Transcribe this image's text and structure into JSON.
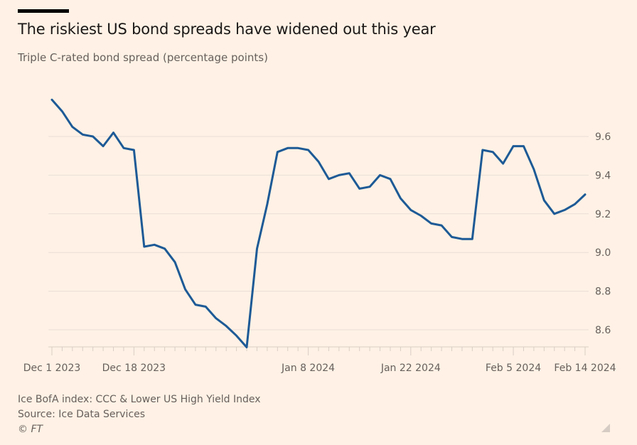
{
  "header": {
    "title": "The riskiest US bond spreads have widened out this year",
    "subtitle": "Triple C-rated bond spread (percentage points)"
  },
  "footer": {
    "note": "Ice BofA index: CCC & Lower US High Yield Index",
    "source": "Source: Ice Data Services",
    "copyright": "© FT"
  },
  "colors": {
    "background": "#fff1e5",
    "line": "#1d5a96",
    "grid": "#e9dfd6",
    "axis_text": "#66605c"
  },
  "chart_data": {
    "type": "line",
    "title": "The riskiest US bond spreads have widened out this year",
    "subtitle": "Triple C-rated bond spread (percentage points)",
    "xlabel": "",
    "ylabel": "Triple C-rated bond spread (percentage points)",
    "ylim": [
      8.5,
      9.75
    ],
    "yticks": [
      8.6,
      8.8,
      9.0,
      9.2,
      9.4,
      9.6
    ],
    "ytick_labels": [
      "8.6",
      "8.8",
      "9.0",
      "9.2",
      "9.4",
      "9.6"
    ],
    "y_axis_side": "right",
    "grid": true,
    "legend": "none",
    "xtick_labels": [
      {
        "label": "Dec 1 2023",
        "index": 0
      },
      {
        "label": "Dec 18 2023",
        "index": 8
      },
      {
        "label": "Jan 8 2024",
        "index": 25
      },
      {
        "label": "Jan 22 2024",
        "index": 35
      },
      {
        "label": "Feb 5 2024",
        "index": 45
      },
      {
        "label": "Feb 14 2024",
        "index": 52
      }
    ],
    "series": [
      {
        "name": "ICE BofA CCC & Lower US High Yield Index spread",
        "values": [
          9.79,
          9.73,
          9.65,
          9.61,
          9.6,
          9.55,
          9.62,
          9.54,
          9.53,
          9.03,
          9.04,
          9.02,
          8.95,
          8.81,
          8.73,
          8.72,
          8.66,
          8.62,
          8.57,
          8.51,
          9.02,
          9.25,
          9.52,
          9.54,
          9.54,
          9.53,
          9.47,
          9.38,
          9.4,
          9.41,
          9.33,
          9.34,
          9.4,
          9.38,
          9.28,
          9.22,
          9.19,
          9.15,
          9.14,
          9.08,
          9.07,
          9.07,
          9.53,
          9.52,
          9.46,
          9.55,
          9.55,
          9.43,
          9.27,
          9.2,
          9.22,
          9.25,
          9.3
        ]
      }
    ]
  }
}
